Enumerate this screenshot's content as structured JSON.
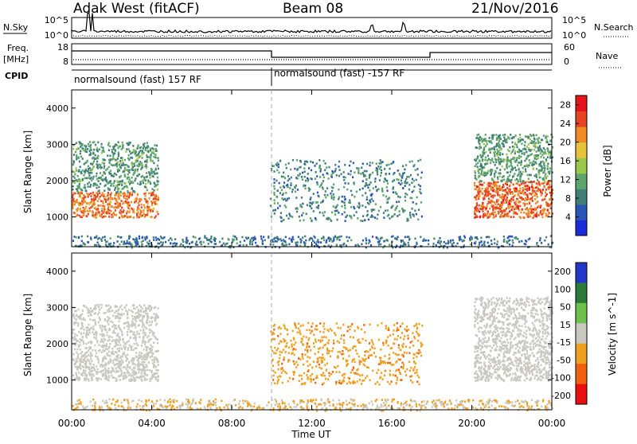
{
  "header": {
    "station": "Adak West (fitACF)",
    "beam": "Beam 08",
    "date": "21/Nov/2016"
  },
  "strips": {
    "nsky_label": "N.Sky",
    "nsearch_label": "N.Search",
    "nsky_ticks": [
      "10^5",
      "10^0"
    ],
    "nsearch_ticks": [
      "10^5",
      "10^0"
    ],
    "freq_label": "Freq.",
    "freq_unit": "[MHz]",
    "freq_ticks": [
      "18",
      "8"
    ],
    "nave_label": "Nave",
    "nave_ticks": [
      "60",
      "0"
    ],
    "cpid_label": "CPID",
    "cpid_segments": [
      "normalsound (fast) 157 RF",
      "normalsound (fast) -157 RF"
    ]
  },
  "chart_data": [
    {
      "type": "heatmap",
      "panel": "power",
      "ylabel": "Slant Range [km]",
      "yticks": [
        "1000",
        "2000",
        "3000",
        "4000"
      ],
      "ylim": [
        180,
        4500
      ],
      "xticks": [
        "00:00",
        "04:00",
        "08:00",
        "12:00",
        "16:00",
        "20:00",
        "00:00"
      ],
      "xlim_hours": [
        0,
        24
      ],
      "colorbar": {
        "label": "Power [dB]",
        "ticks": [
          "4",
          "8",
          "12",
          "16",
          "20",
          "24",
          "28"
        ],
        "range": [
          0,
          30
        ]
      },
      "regions": [
        {
          "start_hr": 0.0,
          "end_hr": 4.3,
          "range_km": [
            1000,
            1700
          ],
          "value_db": 24
        },
        {
          "start_hr": 0.0,
          "end_hr": 4.3,
          "range_km": [
            1700,
            3100
          ],
          "value_db": 10
        },
        {
          "start_hr": 9.9,
          "end_hr": 17.5,
          "range_km": [
            900,
            2600
          ],
          "value_db": 8
        },
        {
          "start_hr": 20.1,
          "end_hr": 24.0,
          "range_km": [
            1000,
            2000
          ],
          "value_db": 25
        },
        {
          "start_hr": 20.1,
          "end_hr": 24.0,
          "range_km": [
            2000,
            3300
          ],
          "value_db": 10
        },
        {
          "start_hr": 0.0,
          "end_hr": 24.0,
          "range_km": [
            180,
            500
          ],
          "value_db": 6
        }
      ]
    },
    {
      "type": "heatmap",
      "panel": "velocity",
      "ylabel": "Slant Range [km]",
      "yticks": [
        "1000",
        "2000",
        "3000",
        "4000"
      ],
      "ylim": [
        180,
        4500
      ],
      "xticks": [
        "00:00",
        "04:00",
        "08:00",
        "12:00",
        "16:00",
        "20:00",
        "00:00"
      ],
      "xlim_hours": [
        0,
        24
      ],
      "xlabel": "Time UT",
      "colorbar": {
        "label": "Velocity [m s^-1]",
        "ticks": [
          "200",
          "100",
          "50",
          "15",
          "-15",
          "-50",
          "-100",
          "-200"
        ]
      },
      "regions": [
        {
          "start_hr": 0.0,
          "end_hr": 4.3,
          "range_km": [
            1000,
            1700
          ],
          "value_ms": 0
        },
        {
          "start_hr": 0.0,
          "end_hr": 4.3,
          "range_km": [
            1700,
            3100
          ],
          "value_ms": 0
        },
        {
          "start_hr": 9.9,
          "end_hr": 17.5,
          "range_km": [
            900,
            2600
          ],
          "value_ms": -60
        },
        {
          "start_hr": 20.1,
          "end_hr": 24.0,
          "range_km": [
            1000,
            2000
          ],
          "value_ms": 0
        },
        {
          "start_hr": 20.1,
          "end_hr": 24.0,
          "range_km": [
            2000,
            3300
          ],
          "value_ms": 0
        },
        {
          "start_hr": 0.0,
          "end_hr": 24.0,
          "range_km": [
            180,
            500
          ],
          "value_ms": -30
        }
      ]
    }
  ],
  "colors": {
    "power": [
      "#1a2bd9",
      "#2a55b8",
      "#3f7f78",
      "#5ea56b",
      "#9bc84a",
      "#e8c23a",
      "#f08a25",
      "#e64422",
      "#e4141a"
    ],
    "velocity": {
      "200": "#2236c8",
      "100": "#2a7a3a",
      "50": "#6cc24a",
      "15": "#c8c8c0",
      "-15": "#c8c8c0",
      "-50": "#f0a020",
      "-100": "#f06010",
      "-200": "#e81010"
    }
  }
}
